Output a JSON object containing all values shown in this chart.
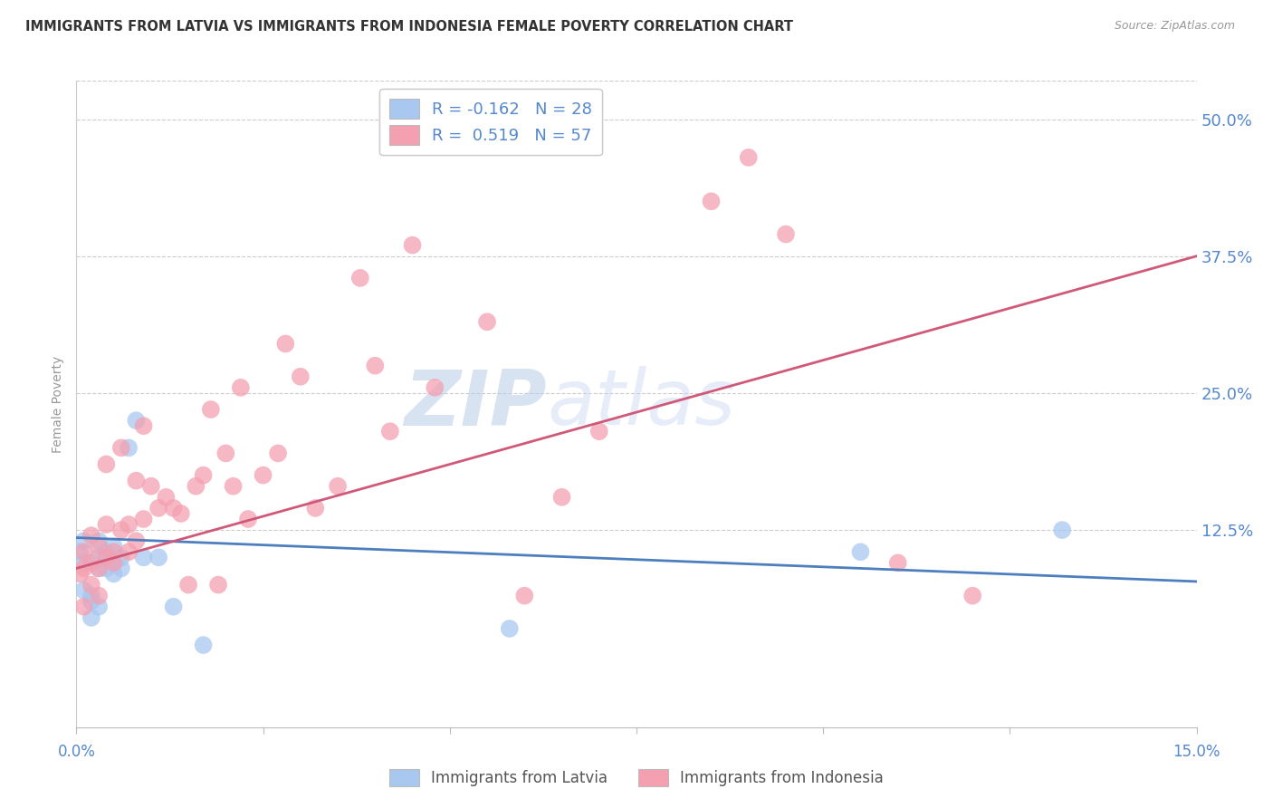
{
  "title": "IMMIGRANTS FROM LATVIA VS IMMIGRANTS FROM INDONESIA FEMALE POVERTY CORRELATION CHART",
  "source": "Source: ZipAtlas.com",
  "ylabel": "Female Poverty",
  "y_ticks": [
    0.0,
    0.125,
    0.25,
    0.375,
    0.5
  ],
  "y_tick_labels": [
    "",
    "12.5%",
    "25.0%",
    "37.5%",
    "50.0%"
  ],
  "xlim": [
    0.0,
    0.15
  ],
  "ylim": [
    -0.055,
    0.535
  ],
  "legend_r1": "R = -0.162",
  "legend_n1": "N = 28",
  "legend_r2": "R =  0.519",
  "legend_n2": "N = 57",
  "color_latvia": "#a8c8f0",
  "color_indonesia": "#f4a0b0",
  "color_latvia_line": "#4d7fbf",
  "color_indonesia_line": "#d05878",
  "color_axis_labels": "#5588cc",
  "watermark_zip": "ZIP",
  "watermark_atlas": "atlas",
  "latvia_x": [
    0.0005,
    0.001,
    0.001,
    0.001,
    0.002,
    0.002,
    0.002,
    0.003,
    0.003,
    0.003,
    0.003,
    0.004,
    0.004,
    0.004,
    0.005,
    0.005,
    0.005,
    0.006,
    0.006,
    0.007,
    0.008,
    0.009,
    0.011,
    0.013,
    0.017,
    0.058,
    0.105,
    0.132
  ],
  "latvia_y": [
    0.105,
    0.115,
    0.095,
    0.07,
    0.065,
    0.045,
    0.06,
    0.1,
    0.115,
    0.09,
    0.055,
    0.09,
    0.105,
    0.1,
    0.085,
    0.11,
    0.095,
    0.09,
    0.1,
    0.2,
    0.225,
    0.1,
    0.1,
    0.055,
    0.02,
    0.035,
    0.105,
    0.125
  ],
  "indonesia_x": [
    0.0005,
    0.001,
    0.001,
    0.001,
    0.002,
    0.002,
    0.002,
    0.003,
    0.003,
    0.003,
    0.004,
    0.004,
    0.004,
    0.005,
    0.005,
    0.006,
    0.006,
    0.007,
    0.007,
    0.008,
    0.008,
    0.009,
    0.009,
    0.01,
    0.011,
    0.012,
    0.013,
    0.014,
    0.015,
    0.016,
    0.017,
    0.018,
    0.019,
    0.02,
    0.021,
    0.022,
    0.023,
    0.025,
    0.027,
    0.028,
    0.03,
    0.032,
    0.035,
    0.038,
    0.04,
    0.042,
    0.045,
    0.048,
    0.055,
    0.06,
    0.065,
    0.07,
    0.085,
    0.09,
    0.095,
    0.11,
    0.12
  ],
  "indonesia_y": [
    0.085,
    0.09,
    0.105,
    0.055,
    0.075,
    0.095,
    0.12,
    0.065,
    0.09,
    0.11,
    0.1,
    0.13,
    0.185,
    0.095,
    0.105,
    0.125,
    0.2,
    0.105,
    0.13,
    0.115,
    0.17,
    0.135,
    0.22,
    0.165,
    0.145,
    0.155,
    0.145,
    0.14,
    0.075,
    0.165,
    0.175,
    0.235,
    0.075,
    0.195,
    0.165,
    0.255,
    0.135,
    0.175,
    0.195,
    0.295,
    0.265,
    0.145,
    0.165,
    0.355,
    0.275,
    0.215,
    0.385,
    0.255,
    0.315,
    0.065,
    0.155,
    0.215,
    0.425,
    0.465,
    0.395,
    0.095,
    0.065
  ],
  "trendline_latvia_x0": 0.0,
  "trendline_latvia_x1": 0.15,
  "trendline_latvia_y0": 0.118,
  "trendline_latvia_y1": 0.078,
  "trendline_indonesia_x0": 0.0,
  "trendline_indonesia_x1": 0.15,
  "trendline_indonesia_y0": 0.09,
  "trendline_indonesia_y1": 0.375
}
